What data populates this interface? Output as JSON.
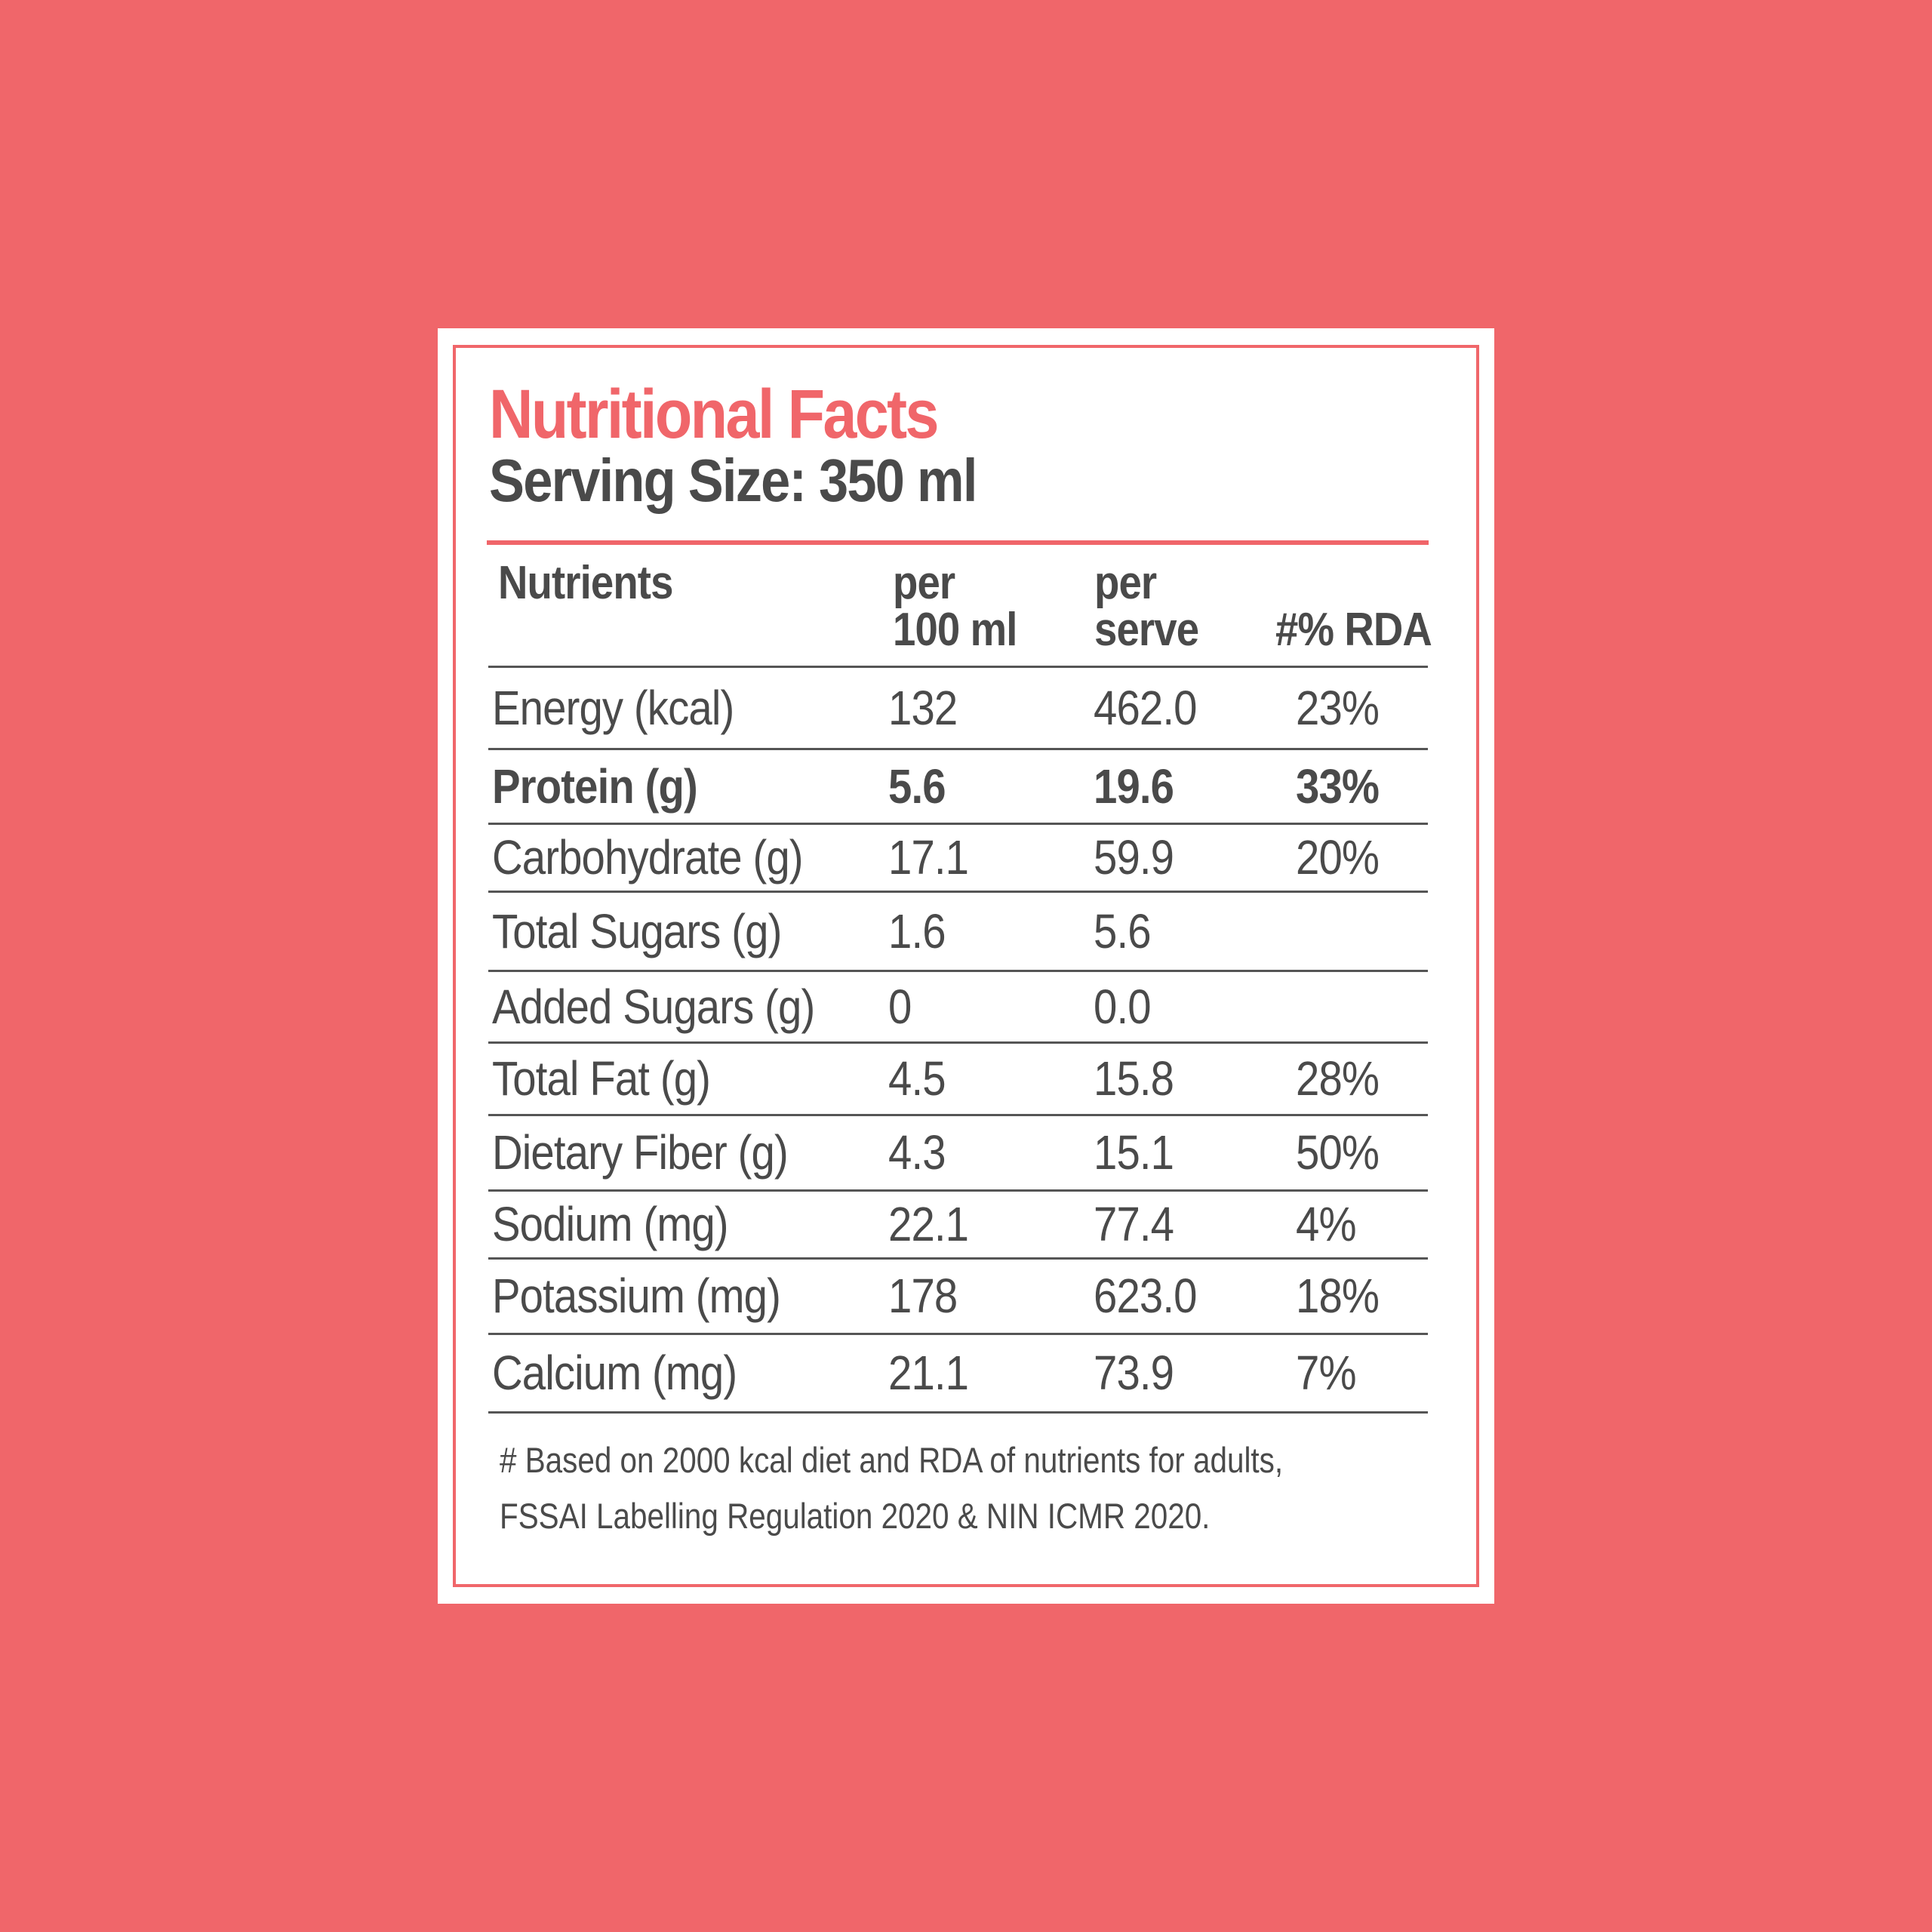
{
  "label": {
    "title": "Nutritional Facts",
    "serving_size": "Serving Size: 350 ml"
  },
  "table": {
    "headers": {
      "nutrients": "Nutrients",
      "per_100ml": [
        "per",
        "100 ml"
      ],
      "per_serve": [
        "per",
        "serve"
      ],
      "rda": "#% RDA"
    },
    "rows": [
      {
        "name": "Energy (kcal)",
        "per_100ml": "132",
        "per_serve": "462.0",
        "rda": "23%",
        "bold": false
      },
      {
        "name": "Protein (g)",
        "per_100ml": "5.6",
        "per_serve": "19.6",
        "rda": "33%",
        "bold": true
      },
      {
        "name": "Carbohydrate (g)",
        "per_100ml": "17.1",
        "per_serve": "59.9",
        "rda": "20%",
        "bold": false
      },
      {
        "name": "Total Sugars (g)",
        "per_100ml": "1.6",
        "per_serve": "5.6",
        "rda": "",
        "bold": false
      },
      {
        "name": "Added Sugars (g)",
        "per_100ml": "0",
        "per_serve": "0.0",
        "rda": "",
        "bold": false
      },
      {
        "name": "Total Fat (g)",
        "per_100ml": "4.5",
        "per_serve": "15.8",
        "rda": "28%",
        "bold": false
      },
      {
        "name": "Dietary Fiber (g)",
        "per_100ml": "4.3",
        "per_serve": "15.1",
        "rda": "50%",
        "bold": false
      },
      {
        "name": "Sodium (mg)",
        "per_100ml": "22.1",
        "per_serve": "77.4",
        "rda": "4%",
        "bold": false
      },
      {
        "name": "Potassium (mg)",
        "per_100ml": "178",
        "per_serve": "623.0",
        "rda": "18%",
        "bold": false
      },
      {
        "name": "Calcium (mg)",
        "per_100ml": "21.1",
        "per_serve": "73.9",
        "rda": "7%",
        "bold": false
      }
    ]
  },
  "footnote": [
    "# Based on 2000 kcal diet and RDA of nutrients for adults,",
    "FSSAI Labelling Regulation 2020 & NIN ICMR 2020."
  ],
  "colors": {
    "background": "#f0666a",
    "accent": "#f0666a",
    "text": "#4a4a4a",
    "panel": "#ffffff"
  }
}
